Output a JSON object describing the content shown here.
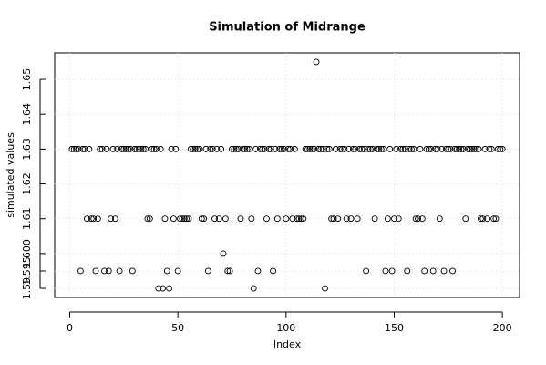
{
  "chart_data": {
    "type": "scatter",
    "title": "Simulation of Midrange",
    "x_label": "Index",
    "y_label": "simulated values",
    "x": [
      1,
      2,
      3,
      4,
      5,
      6,
      7,
      8,
      9,
      10,
      11,
      12,
      13,
      14,
      15,
      16,
      17,
      18,
      19,
      20,
      21,
      22,
      23,
      24,
      25,
      26,
      27,
      28,
      29,
      30,
      31,
      32,
      33,
      34,
      35,
      36,
      37,
      38,
      39,
      40,
      41,
      42,
      43,
      44,
      45,
      46,
      47,
      48,
      49,
      50,
      51,
      52,
      53,
      54,
      55,
      56,
      57,
      58,
      59,
      60,
      61,
      62,
      63,
      64,
      65,
      66,
      67,
      68,
      69,
      70,
      71,
      72,
      73,
      74,
      75,
      76,
      77,
      78,
      79,
      80,
      81,
      82,
      83,
      84,
      85,
      86,
      87,
      88,
      89,
      90,
      91,
      92,
      93,
      94,
      95,
      96,
      97,
      98,
      99,
      100,
      101,
      102,
      103,
      104,
      105,
      106,
      107,
      108,
      109,
      110,
      111,
      112,
      113,
      114,
      115,
      116,
      117,
      118,
      119,
      120,
      121,
      122,
      123,
      124,
      125,
      126,
      127,
      128,
      129,
      130,
      131,
      132,
      133,
      134,
      135,
      136,
      137,
      138,
      139,
      140,
      141,
      142,
      143,
      144,
      145,
      146,
      147,
      148,
      149,
      150,
      151,
      152,
      153,
      154,
      155,
      156,
      157,
      158,
      159,
      160,
      161,
      162,
      163,
      164,
      165,
      166,
      167,
      168,
      169,
      170,
      171,
      172,
      173,
      174,
      175,
      176,
      177,
      178,
      179,
      180,
      181,
      182,
      183,
      184,
      185,
      186,
      187,
      188,
      189,
      190,
      191,
      192,
      193,
      194,
      195,
      196,
      197,
      198,
      199,
      200
    ],
    "values": [
      1.63,
      1.63,
      1.63,
      1.63,
      1.595,
      1.63,
      1.63,
      1.61,
      1.63,
      1.61,
      1.61,
      1.595,
      1.61,
      1.63,
      1.63,
      1.595,
      1.63,
      1.595,
      1.61,
      1.63,
      1.61,
      1.63,
      1.595,
      1.63,
      1.63,
      1.63,
      1.63,
      1.63,
      1.595,
      1.63,
      1.63,
      1.63,
      1.63,
      1.63,
      1.63,
      1.61,
      1.61,
      1.63,
      1.63,
      1.63,
      1.59,
      1.63,
      1.59,
      1.61,
      1.595,
      1.59,
      1.63,
      1.61,
      1.63,
      1.595,
      1.61,
      1.61,
      1.61,
      1.61,
      1.61,
      1.63,
      1.63,
      1.63,
      1.63,
      1.63,
      1.61,
      1.61,
      1.63,
      1.595,
      1.63,
      1.63,
      1.61,
      1.63,
      1.61,
      1.63,
      1.6,
      1.61,
      1.595,
      1.595,
      1.63,
      1.63,
      1.63,
      1.63,
      1.61,
      1.63,
      1.63,
      1.63,
      1.63,
      1.61,
      1.59,
      1.63,
      1.595,
      1.63,
      1.63,
      1.63,
      1.61,
      1.63,
      1.63,
      1.595,
      1.63,
      1.61,
      1.63,
      1.63,
      1.63,
      1.61,
      1.63,
      1.63,
      1.61,
      1.63,
      1.61,
      1.61,
      1.61,
      1.61,
      1.63,
      1.63,
      1.63,
      1.63,
      1.63,
      1.655,
      1.63,
      1.63,
      1.63,
      1.59,
      1.63,
      1.63,
      1.61,
      1.61,
      1.63,
      1.61,
      1.63,
      1.63,
      1.63,
      1.61,
      1.63,
      1.61,
      1.63,
      1.63,
      1.61,
      1.63,
      1.63,
      1.63,
      1.595,
      1.63,
      1.63,
      1.63,
      1.61,
      1.63,
      1.63,
      1.63,
      1.63,
      1.595,
      1.61,
      1.63,
      1.595,
      1.61,
      1.63,
      1.61,
      1.63,
      1.63,
      1.63,
      1.595,
      1.63,
      1.63,
      1.63,
      1.61,
      1.61,
      1.63,
      1.61,
      1.595,
      1.63,
      1.63,
      1.63,
      1.595,
      1.63,
      1.63,
      1.61,
      1.63,
      1.595,
      1.63,
      1.63,
      1.63,
      1.595,
      1.63,
      1.63,
      1.63,
      1.63,
      1.63,
      1.61,
      1.63,
      1.63,
      1.63,
      1.63,
      1.63,
      1.63,
      1.61,
      1.61,
      1.63,
      1.61,
      1.63,
      1.63,
      1.61,
      1.61,
      1.63,
      1.63,
      1.63
    ],
    "color": "#000000",
    "xlim": [
      -6.96,
      207.96
    ],
    "ylim": [
      1.5874,
      1.6576
    ],
    "xticks": [
      0,
      50,
      100,
      150,
      200
    ],
    "yticks": [
      1.59,
      1.595,
      {
        "value": 1.6,
        "label": "1.600"
      },
      1.61,
      1.62,
      1.63,
      1.64,
      1.65
    ],
    "grid": true
  }
}
